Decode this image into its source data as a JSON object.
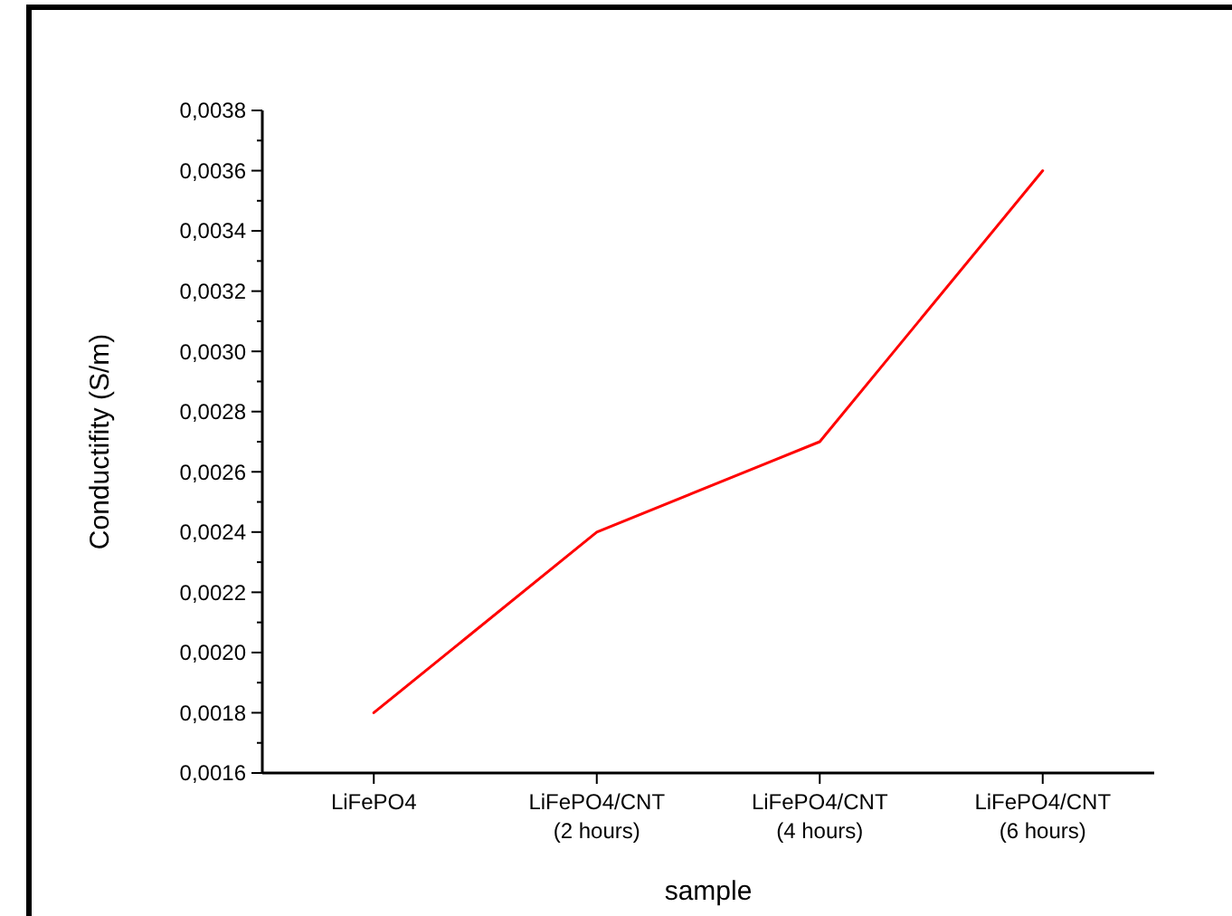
{
  "chart_data": {
    "type": "line",
    "xlabel": "sample",
    "ylabel": "Conductifity (S/m)",
    "categories": [
      "LiFePO4",
      "LiFePO4/CNT\n(2 hours)",
      "LiFePO4/CNT\n(4 hours)",
      "LiFePO4/CNT\n(6 hours)"
    ],
    "series": [
      {
        "color": "#ff0000",
        "values": [
          0.0018,
          0.0024,
          0.0027,
          0.0036
        ]
      }
    ],
    "ylim": [
      0.0016,
      0.0038
    ],
    "yticks": [
      {
        "value": 0.0016,
        "label": "0,0016"
      },
      {
        "value": 0.0018,
        "label": "0,0018"
      },
      {
        "value": 0.002,
        "label": "0,0020"
      },
      {
        "value": 0.0022,
        "label": "0,0022"
      },
      {
        "value": 0.0024,
        "label": "0,0024"
      },
      {
        "value": 0.0026,
        "label": "0,0026"
      },
      {
        "value": 0.0028,
        "label": "0,0028"
      },
      {
        "value": 0.003,
        "label": "0,0030"
      },
      {
        "value": 0.0032,
        "label": "0,0032"
      },
      {
        "value": 0.0034,
        "label": "0,0034"
      },
      {
        "value": 0.0036,
        "label": "0,0036"
      },
      {
        "value": 0.0038,
        "label": "0,0038"
      }
    ],
    "grid": false,
    "marker": "none",
    "line_style": "solid"
  }
}
